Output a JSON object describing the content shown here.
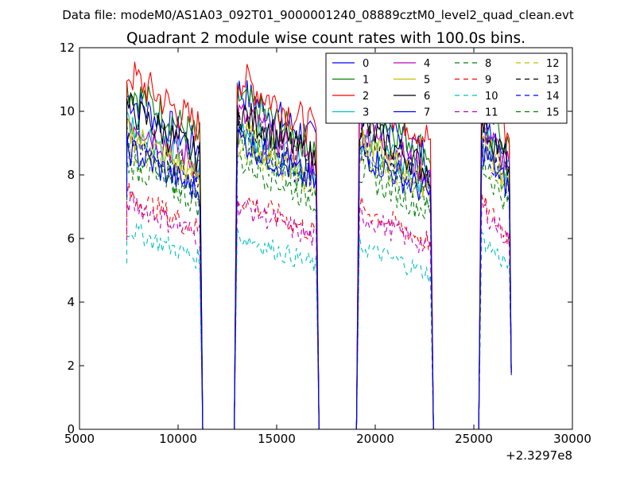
{
  "suptitle": "Data file: modeM0/AS1A03_092T01_9000001240_08889cztM0_level2_quad_clean.evt",
  "chart_data": {
    "type": "line",
    "title": "Quadrant 2 module wise count rates with 100.0s bins.",
    "xlabel": "",
    "ylabel": "",
    "x_offset_label": "+2.3297e8",
    "xlim": [
      5000,
      30000
    ],
    "ylim": [
      0,
      12
    ],
    "xticks": [
      5000,
      10000,
      15000,
      20000,
      25000,
      30000
    ],
    "yticks": [
      0,
      2,
      4,
      6,
      8,
      10,
      12
    ],
    "grid": false,
    "legend": {
      "location": "top-right",
      "columns": 4
    },
    "bin_seconds": 100,
    "segments": [
      {
        "start": 7400,
        "end": 11100
      },
      {
        "start": 13000,
        "end": 17000
      },
      {
        "start": 19200,
        "end": 22800
      },
      {
        "start": 25400,
        "end": 26900
      }
    ],
    "segment_end_dip": {
      "x": 26900,
      "value": 1.7
    },
    "series": [
      {
        "name": "0",
        "color": "#0000ff",
        "dash": "solid",
        "segment_levels": [
          9.6,
          9.8,
          9.3,
          9.2
        ]
      },
      {
        "name": "1",
        "color": "#008000",
        "dash": "solid",
        "segment_levels": [
          9.9,
          9.6,
          9.4,
          9.5
        ]
      },
      {
        "name": "2",
        "color": "#ff0000",
        "dash": "solid",
        "segment_levels": [
          10.3,
          10.2,
          9.9,
          9.9
        ]
      },
      {
        "name": "3",
        "color": "#00bfbf",
        "dash": "solid",
        "segment_levels": [
          8.9,
          8.8,
          8.4,
          8.6
        ]
      },
      {
        "name": "4",
        "color": "#bf00bf",
        "dash": "solid",
        "segment_levels": [
          9.0,
          9.1,
          8.7,
          8.8
        ]
      },
      {
        "name": "5",
        "color": "#bfbf00",
        "dash": "solid",
        "segment_levels": [
          8.6,
          8.6,
          8.3,
          8.4
        ]
      },
      {
        "name": "6",
        "color": "#000000",
        "dash": "solid",
        "segment_levels": [
          9.3,
          9.2,
          8.8,
          8.9
        ]
      },
      {
        "name": "7",
        "color": "#0000ff",
        "dash": "solid",
        "segment_levels": [
          8.1,
          8.4,
          8.0,
          8.1
        ]
      },
      {
        "name": "8",
        "color": "#008000",
        "dash": "dashed",
        "segment_levels": [
          7.7,
          7.8,
          7.4,
          7.6
        ]
      },
      {
        "name": "9",
        "color": "#ff0000",
        "dash": "dashed",
        "segment_levels": [
          6.8,
          6.7,
          6.4,
          6.5
        ]
      },
      {
        "name": "10",
        "color": "#00bfbf",
        "dash": "dashed",
        "segment_levels": [
          5.8,
          5.6,
          5.3,
          5.5
        ]
      },
      {
        "name": "11",
        "color": "#bf00bf",
        "dash": "dashed",
        "segment_levels": [
          6.6,
          6.5,
          6.2,
          6.4
        ]
      },
      {
        "name": "12",
        "color": "#bfbf00",
        "dash": "dashed",
        "segment_levels": [
          8.2,
          8.3,
          8.0,
          8.1
        ]
      },
      {
        "name": "13",
        "color": "#000000",
        "dash": "dashed",
        "segment_levels": [
          8.6,
          8.8,
          8.5,
          8.6
        ]
      },
      {
        "name": "14",
        "color": "#0000ff",
        "dash": "dashed",
        "segment_levels": [
          8.4,
          8.5,
          8.2,
          8.3
        ]
      },
      {
        "name": "15",
        "color": "#008000",
        "dash": "dashed",
        "segment_levels": [
          8.0,
          8.2,
          7.9,
          8.0
        ]
      }
    ]
  }
}
